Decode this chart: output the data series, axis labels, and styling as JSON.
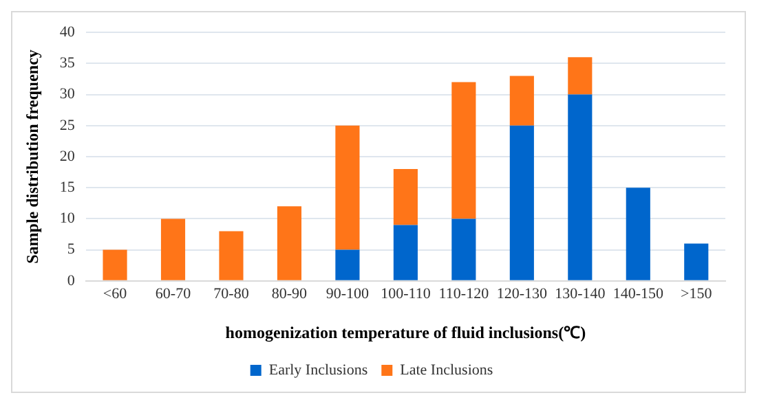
{
  "chart_data": {
    "type": "bar",
    "stacked": true,
    "xlabel": "homogenization temperature of fluid inclusions(℃)",
    "ylabel": "Sample distribution frequency",
    "categories": [
      "<60",
      "60-70",
      "70-80",
      "80-90",
      "90-100",
      "100-110",
      "110-120",
      "120-130",
      "130-140",
      "140-150",
      ">150"
    ],
    "series": [
      {
        "name": "Early Inclusions",
        "color": "#0066cc",
        "values": [
          0,
          0,
          0,
          0,
          5,
          9,
          10,
          25,
          30,
          15,
          6
        ]
      },
      {
        "name": "Late Inclusions",
        "color": "#ff7518",
        "values": [
          5,
          10,
          8,
          12,
          20,
          9,
          22,
          8,
          6,
          0,
          0
        ]
      }
    ],
    "ylim": [
      0,
      40
    ],
    "yticks": [
      0,
      5,
      10,
      15,
      20,
      25,
      30,
      35,
      40
    ],
    "grid": "y",
    "legend": "bottom"
  }
}
